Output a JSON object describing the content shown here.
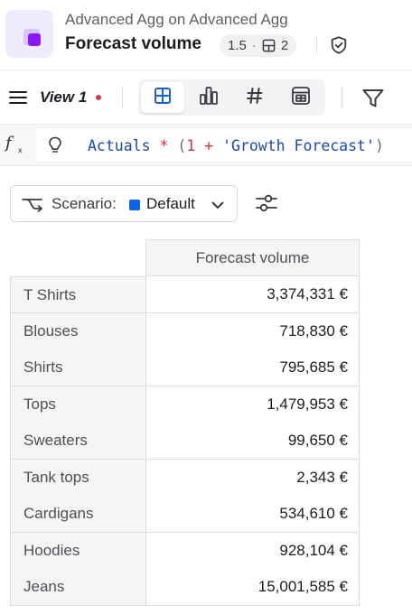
{
  "header": {
    "subtitle": "Advanced Agg on Advanced Agg",
    "title": "Forecast volume",
    "version": "1.5",
    "separator": "·",
    "sheet_count": "2",
    "app_icon": "app-logo-icon",
    "verify_icon": "shield-check-icon"
  },
  "toolbar": {
    "view_name": "View 1",
    "unsaved_indicator_color": "#e0364f",
    "view_modes": [
      {
        "icon": "grid-icon",
        "active": true
      },
      {
        "icon": "bar-chart-icon",
        "active": false
      },
      {
        "icon": "number-icon",
        "active": false
      },
      {
        "icon": "table-calc-icon",
        "active": false
      }
    ],
    "filter_icon": "filter-icon",
    "menu_icon": "hamburger-menu-icon",
    "accent_color": "#1a5fd6"
  },
  "formula": {
    "fx_label": "f",
    "fx_sub": "x",
    "hint_icon": "lightbulb-icon",
    "tokens": {
      "identifier": "Actuals",
      "op_mult": "*",
      "paren_open": "(",
      "number": "1",
      "op_plus": "+",
      "string": "'Growth Forecast'",
      "paren_close": ")"
    }
  },
  "scenario": {
    "label": "Scenario:",
    "value": "Default",
    "swatch_color": "#0a62e6",
    "icon": "scenario-branch-icon",
    "chevron": "chevron-down-icon",
    "settings_icon": "sliders-icon"
  },
  "table": {
    "column_header": "Forecast volume",
    "rows": [
      {
        "label": "T Shirts",
        "value": "3,374,331 €"
      },
      {
        "label": "Blouses",
        "value": "718,830 €"
      },
      {
        "label": "Shirts",
        "value": "795,685 €"
      },
      {
        "label": "Tops",
        "value": "1,479,953 €"
      },
      {
        "label": "Sweaters",
        "value": "99,650 €"
      },
      {
        "label": "Tank tops",
        "value": "2,343 €"
      },
      {
        "label": "Cardigans",
        "value": "534,610 €"
      },
      {
        "label": "Hoodies",
        "value": "928,104 €"
      },
      {
        "label": "Jeans",
        "value": "15,001,585 €"
      }
    ]
  }
}
